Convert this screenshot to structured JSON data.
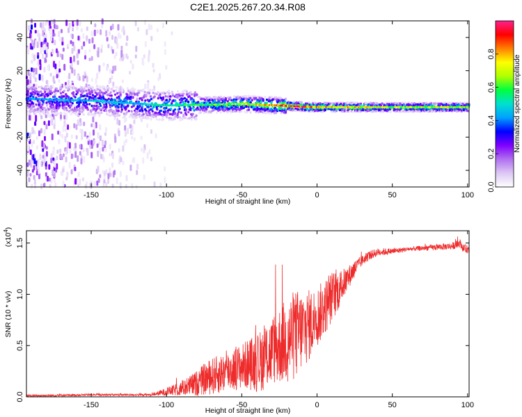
{
  "title": "C2E1.2025.267.20.34.R08",
  "chart_data": [
    {
      "type": "heatmap",
      "xlabel": "Height of straight line (km)",
      "ylabel": "Frequency (Hz)",
      "xlim": [
        -193,
        101
      ],
      "ylim": [
        -50,
        50
      ],
      "xticks": [
        -150,
        -100,
        -50,
        0,
        50,
        100
      ],
      "yticks": [
        -40,
        -20,
        0,
        20,
        40
      ],
      "colorbar": {
        "label": "Normalized spectral amplitude",
        "range": [
          0,
          1
        ],
        "ticks": [
          "0.0",
          "0.2",
          "0.4",
          "0.6",
          "0.8"
        ],
        "tick_values": [
          0.0,
          0.2,
          0.4,
          0.6,
          0.8
        ],
        "colors": [
          "#ffffff",
          "#dcc8f4",
          "#b070f0",
          "#8000ff",
          "#0000ff",
          "#00a0ff",
          "#00e0d0",
          "#00ff40",
          "#b0ff00",
          "#ffff00",
          "#ff8000",
          "#ff0000",
          "#ff2090"
        ]
      },
      "ridge_frequency_hz": [
        [
          -190,
          3
        ],
        [
          -150,
          2
        ],
        [
          -100,
          -1
        ],
        [
          -50,
          0
        ],
        [
          0,
          -2
        ],
        [
          50,
          -2
        ],
        [
          100,
          -2
        ]
      ],
      "ridge_peak_amplitude": [
        [
          -190,
          0.45
        ],
        [
          -120,
          0.5
        ],
        [
          -80,
          0.6
        ],
        [
          -50,
          0.7
        ],
        [
          -15,
          0.95
        ],
        [
          0,
          0.85
        ],
        [
          50,
          0.7
        ],
        [
          100,
          0.7
        ]
      ]
    },
    {
      "type": "line",
      "xlabel": "Height of straight line (km)",
      "ylabel": "SNR (10 * v/v)",
      "scale_note": "(x10",
      "scale_exp": "4",
      "xlim": [
        -193,
        101
      ],
      "ylim": [
        0,
        1.62
      ],
      "xticks": [
        -150,
        -100,
        -50,
        0,
        50,
        100
      ],
      "yticks": [
        "0.0",
        "0.5",
        "1.0",
        "1.5"
      ],
      "ytick_values": [
        0.0,
        0.5,
        1.0,
        1.5
      ],
      "color": "#ee2c2c",
      "series": [
        {
          "name": "SNR",
          "x": [
            -193,
            -150,
            -110,
            -100,
            -90,
            -80,
            -75,
            -70,
            -65,
            -60,
            -55,
            -50,
            -45,
            -40,
            -35,
            -30,
            -25,
            -20,
            -15,
            -10,
            -5,
            0,
            5,
            10,
            15,
            20,
            25,
            30,
            35,
            40,
            50,
            60,
            70,
            80,
            90,
            95,
            97,
            100
          ],
          "y": [
            0.01,
            0.02,
            0.02,
            0.05,
            0.08,
            0.13,
            0.17,
            0.2,
            0.22,
            0.25,
            0.27,
            0.3,
            0.32,
            0.33,
            0.38,
            0.44,
            0.5,
            0.56,
            0.6,
            0.65,
            0.7,
            0.78,
            0.87,
            0.98,
            1.05,
            1.15,
            1.25,
            1.33,
            1.38,
            1.41,
            1.42,
            1.44,
            1.45,
            1.46,
            1.47,
            1.5,
            1.45,
            1.44
          ],
          "noise_envelope": [
            [
              -193,
              0.01
            ],
            [
              -110,
              0.01
            ],
            [
              -90,
              0.07
            ],
            [
              -70,
              0.18
            ],
            [
              -50,
              0.22
            ],
            [
              -30,
              0.35
            ],
            [
              -15,
              0.45
            ],
            [
              0,
              0.3
            ],
            [
              10,
              0.25
            ],
            [
              20,
              0.12
            ],
            [
              30,
              0.05
            ],
            [
              60,
              0.02
            ],
            [
              100,
              0.04
            ]
          ]
        }
      ]
    }
  ]
}
